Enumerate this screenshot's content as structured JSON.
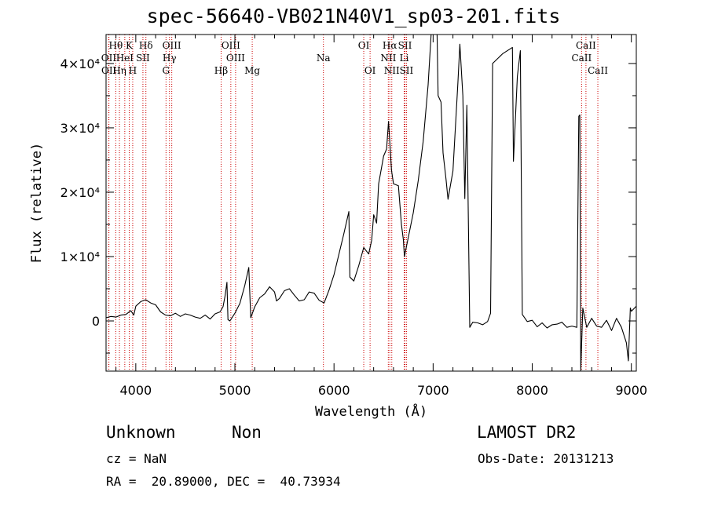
{
  "title": "spec-56640-VB021N40V1_sp03-201.fits",
  "info": {
    "class": "Unknown",
    "subclass": "Non",
    "survey": "LAMOST DR2",
    "cz": "cz = NaN",
    "obs_date": "Obs-Date: 20131213",
    "radec": "RA =  20.89000, DEC =  40.73934"
  },
  "chart_data": {
    "type": "line",
    "title": "spec-56640-VB021N40V1_sp03-201.fits",
    "xlabel": "Wavelength (Å)",
    "ylabel": "Flux (relative)",
    "xlim": [
      3700,
      9050
    ],
    "ylim": [
      -7800,
      44500
    ],
    "x_ticks": [
      4000,
      5000,
      6000,
      7000,
      8000,
      9000
    ],
    "x_tick_labels": [
      "4000",
      "5000",
      "6000",
      "7000",
      "8000",
      "9000"
    ],
    "y_ticks": [
      0,
      10000,
      20000,
      30000,
      40000
    ],
    "y_tick_labels": [
      "0",
      "1×10⁴",
      "2×10⁴",
      "3×10⁴",
      "4×10⁴"
    ],
    "line_color": "#000000",
    "marker_color": "#cc0000",
    "series": [
      {
        "points": [
          [
            3700,
            500
          ],
          [
            3750,
            700
          ],
          [
            3800,
            600
          ],
          [
            3850,
            900
          ],
          [
            3900,
            1000
          ],
          [
            3950,
            1600
          ],
          [
            3980,
            900
          ],
          [
            4000,
            2300
          ],
          [
            4050,
            3000
          ],
          [
            4100,
            3300
          ],
          [
            4150,
            2800
          ],
          [
            4200,
            2500
          ],
          [
            4250,
            1400
          ],
          [
            4300,
            900
          ],
          [
            4350,
            800
          ],
          [
            4400,
            1200
          ],
          [
            4450,
            700
          ],
          [
            4500,
            1100
          ],
          [
            4550,
            900
          ],
          [
            4600,
            600
          ],
          [
            4650,
            400
          ],
          [
            4700,
            900
          ],
          [
            4750,
            300
          ],
          [
            4800,
            1100
          ],
          [
            4850,
            1400
          ],
          [
            4880,
            2200
          ],
          [
            4900,
            3800
          ],
          [
            4920,
            6000
          ],
          [
            4930,
            200
          ],
          [
            4950,
            0
          ],
          [
            5000,
            1200
          ],
          [
            5050,
            2700
          ],
          [
            5100,
            5500
          ],
          [
            5140,
            8300
          ],
          [
            5160,
            500
          ],
          [
            5200,
            2200
          ],
          [
            5250,
            3600
          ],
          [
            5300,
            4200
          ],
          [
            5350,
            5300
          ],
          [
            5400,
            4500
          ],
          [
            5420,
            3100
          ],
          [
            5450,
            3500
          ],
          [
            5500,
            4700
          ],
          [
            5550,
            5000
          ],
          [
            5600,
            4000
          ],
          [
            5650,
            3100
          ],
          [
            5700,
            3300
          ],
          [
            5750,
            4500
          ],
          [
            5800,
            4300
          ],
          [
            5850,
            3200
          ],
          [
            5900,
            2800
          ],
          [
            5950,
            4800
          ],
          [
            6000,
            7200
          ],
          [
            6050,
            10400
          ],
          [
            6100,
            13600
          ],
          [
            6150,
            17000
          ],
          [
            6160,
            6800
          ],
          [
            6200,
            6200
          ],
          [
            6250,
            8600
          ],
          [
            6300,
            11400
          ],
          [
            6350,
            10400
          ],
          [
            6380,
            12500
          ],
          [
            6400,
            16500
          ],
          [
            6430,
            15200
          ],
          [
            6450,
            21300
          ],
          [
            6500,
            25600
          ],
          [
            6530,
            26700
          ],
          [
            6550,
            31000
          ],
          [
            6580,
            23400
          ],
          [
            6600,
            21300
          ],
          [
            6650,
            21000
          ],
          [
            6680,
            15000
          ],
          [
            6700,
            12600
          ],
          [
            6710,
            10000
          ],
          [
            6750,
            13000
          ],
          [
            6800,
            16800
          ],
          [
            6850,
            21800
          ],
          [
            6900,
            27900
          ],
          [
            6950,
            36700
          ],
          [
            6980,
            45000
          ],
          [
            7040,
            45000
          ],
          [
            7050,
            35000
          ],
          [
            7080,
            34000
          ],
          [
            7100,
            26100
          ],
          [
            7130,
            22000
          ],
          [
            7150,
            18900
          ],
          [
            7200,
            23300
          ],
          [
            7250,
            37000
          ],
          [
            7270,
            43000
          ],
          [
            7300,
            35000
          ],
          [
            7320,
            19000
          ],
          [
            7340,
            33500
          ],
          [
            7370,
            -1000
          ],
          [
            7400,
            -200
          ],
          [
            7450,
            -300
          ],
          [
            7500,
            -600
          ],
          [
            7550,
            -100
          ],
          [
            7580,
            1200
          ],
          [
            7600,
            40000
          ],
          [
            7700,
            41500
          ],
          [
            7800,
            42500
          ],
          [
            7810,
            24800
          ],
          [
            7850,
            38000
          ],
          [
            7880,
            42000
          ],
          [
            7900,
            1000
          ],
          [
            7950,
            -100
          ],
          [
            8000,
            100
          ],
          [
            8050,
            -900
          ],
          [
            8100,
            -300
          ],
          [
            8150,
            -1100
          ],
          [
            8200,
            -600
          ],
          [
            8250,
            -500
          ],
          [
            8300,
            -200
          ],
          [
            8350,
            -1000
          ],
          [
            8400,
            -800
          ],
          [
            8450,
            -1000
          ],
          [
            8470,
            31800
          ],
          [
            8480,
            32000
          ],
          [
            8490,
            -7700
          ],
          [
            8510,
            2000
          ],
          [
            8550,
            -1000
          ],
          [
            8600,
            400
          ],
          [
            8650,
            -800
          ],
          [
            8700,
            -1000
          ],
          [
            8750,
            100
          ],
          [
            8800,
            -1500
          ],
          [
            8850,
            400
          ],
          [
            8900,
            -1000
          ],
          [
            8950,
            -3400
          ],
          [
            8970,
            -6200
          ],
          [
            8990,
            2000
          ],
          [
            9000,
            1500
          ],
          [
            9050,
            2300
          ]
        ]
      }
    ],
    "lines": [
      {
        "label": "Hθ",
        "x": 3798,
        "row": 0
      },
      {
        "label": "OII",
        "x": 3727,
        "row": 1
      },
      {
        "label": "OII",
        "x": 3729,
        "row": 2
      },
      {
        "label": "K",
        "x": 3934,
        "row": 0
      },
      {
        "label": "HeI",
        "x": 3889,
        "row": 1
      },
      {
        "label": "Hη",
        "x": 3835,
        "row": 2
      },
      {
        "label": "H",
        "x": 3969,
        "row": 2
      },
      {
        "label": "Hδ",
        "x": 4102,
        "row": 0
      },
      {
        "label": "SII",
        "x": 4072,
        "row": 1
      },
      {
        "label": "OIII",
        "x": 4363,
        "row": 0
      },
      {
        "label": "Hγ",
        "x": 4340,
        "row": 1
      },
      {
        "label": "G",
        "x": 4305,
        "row": 2
      },
      {
        "label": "OIII",
        "x": 4959,
        "row": 0
      },
      {
        "label": "OIII",
        "x": 5007,
        "row": 1
      },
      {
        "label": "Hβ",
        "x": 4861,
        "row": 2
      },
      {
        "label": "Mg",
        "x": 5175,
        "row": 2
      },
      {
        "label": "Na",
        "x": 5893,
        "row": 1
      },
      {
        "label": "OI",
        "x": 6300,
        "row": 0
      },
      {
        "label": "OI",
        "x": 6364,
        "row": 2
      },
      {
        "label": "Hα",
        "x": 6563,
        "row": 0
      },
      {
        "label": "SII",
        "x": 6716,
        "row": 0
      },
      {
        "label": "NII",
        "x": 6548,
        "row": 1
      },
      {
        "label": "Li",
        "x": 6708,
        "row": 1
      },
      {
        "label": "NII",
        "x": 6583,
        "row": 2
      },
      {
        "label": "SII",
        "x": 6731,
        "row": 2
      },
      {
        "label": "CaII",
        "x": 8542,
        "row": 0
      },
      {
        "label": "CaII",
        "x": 8498,
        "row": 1
      },
      {
        "label": "CaII",
        "x": 8662,
        "row": 2
      }
    ]
  }
}
